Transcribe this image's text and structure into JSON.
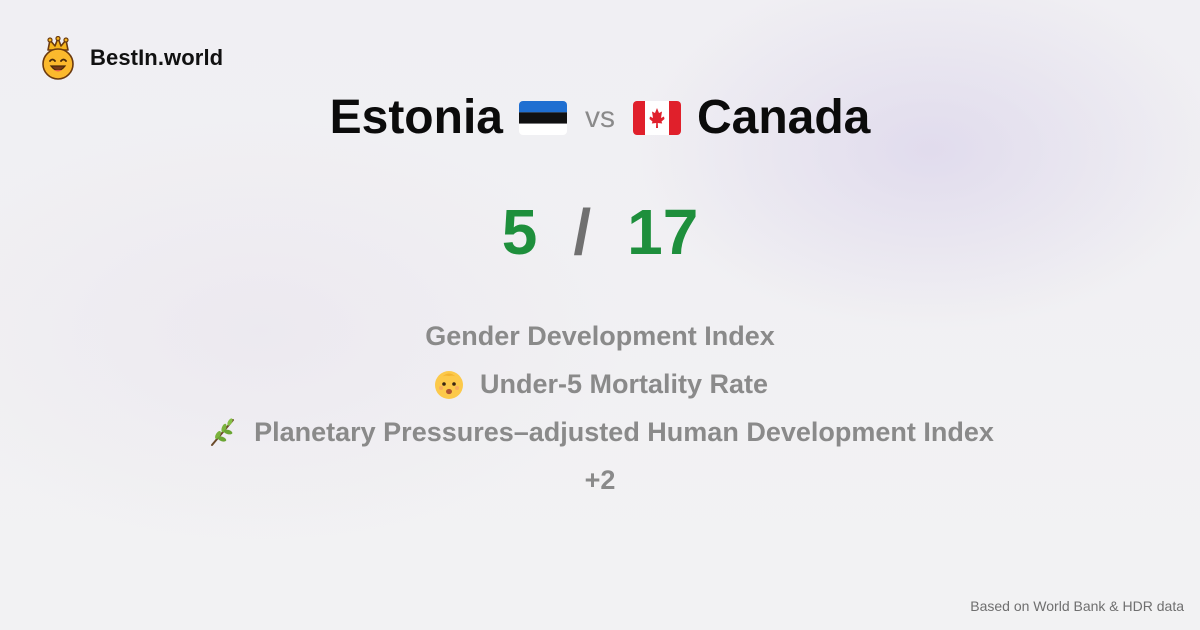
{
  "brand": {
    "name": "BestIn.world",
    "logo_icon": "smiling-crown-face-icon"
  },
  "comparison": {
    "left_country": "Estonia",
    "left_flag": "estonia-flag-icon",
    "vs_label": "vs",
    "right_country": "Canada",
    "right_flag": "canada-flag-icon"
  },
  "score": {
    "left": "5",
    "separator": "/",
    "right": "17",
    "color": "#1e8f3c"
  },
  "metrics": [
    {
      "label": "Gender Development Index",
      "icon": ""
    },
    {
      "label": "Under-5 Mortality Rate",
      "icon": "baby-face-icon"
    },
    {
      "label": "Planetary Pressures–adjusted Human Development Index",
      "icon": "herb-icon"
    }
  ],
  "more_label": "+2",
  "footer": "Based on World Bank & HDR data"
}
